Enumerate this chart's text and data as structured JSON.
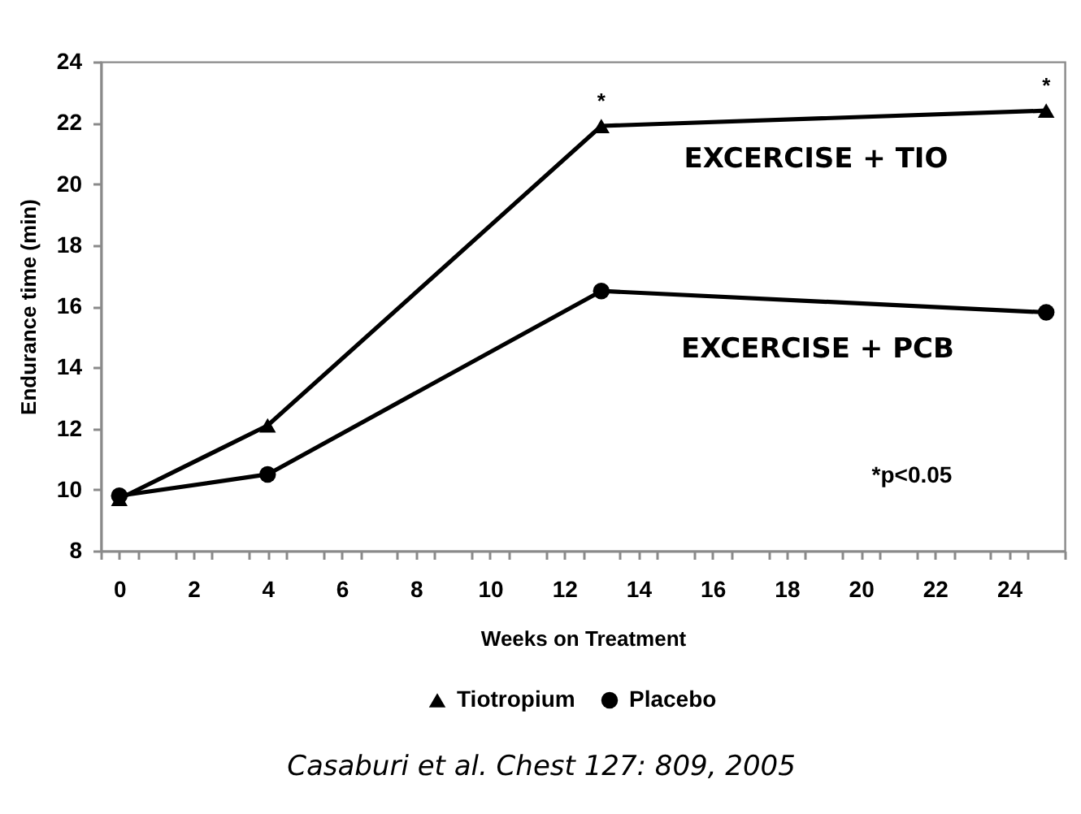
{
  "chart_data": {
    "type": "line",
    "xlabel": "Weeks on Treatment",
    "ylabel": "Endurance time (min)",
    "x": [
      0,
      4,
      13,
      25
    ],
    "series": [
      {
        "name": "Tiotropium",
        "color": "#000000",
        "marker": "triangle",
        "values": [
          9.7,
          12.1,
          21.9,
          22.4
        ]
      },
      {
        "name": "Placebo",
        "color": "#000000",
        "marker": "circle",
        "values": [
          9.8,
          10.5,
          16.5,
          15.8
        ]
      }
    ],
    "xlim": [
      -0.5,
      25.5
    ],
    "xticks": [
      {
        "value": -0.5,
        "label": null
      },
      0,
      {
        "value": 0.5,
        "label": null
      },
      {
        "value": 1.5,
        "label": null
      },
      2,
      {
        "value": 2.5,
        "label": null
      },
      {
        "value": 3.5,
        "label": null
      },
      4,
      {
        "value": 4.5,
        "label": null
      },
      {
        "value": 5.5,
        "label": null
      },
      6,
      {
        "value": 6.5,
        "label": null
      },
      {
        "value": 7.5,
        "label": null
      },
      8,
      {
        "value": 8.5,
        "label": null
      },
      {
        "value": 9.5,
        "label": null
      },
      10,
      {
        "value": 10.5,
        "label": null
      },
      {
        "value": 11.5,
        "label": null
      },
      12,
      {
        "value": 12.5,
        "label": null
      },
      {
        "value": 13.5,
        "label": null
      },
      14,
      {
        "value": 14.5,
        "label": null
      },
      {
        "value": 15.5,
        "label": null
      },
      16,
      {
        "value": 16.5,
        "label": null
      },
      {
        "value": 17.5,
        "label": null
      },
      18,
      {
        "value": 18.5,
        "label": null
      },
      {
        "value": 19.5,
        "label": null
      },
      20,
      {
        "value": 20.5,
        "label": null
      },
      {
        "value": 21.5,
        "label": null
      },
      22,
      {
        "value": 22.5,
        "label": null
      },
      {
        "value": 23.5,
        "label": null
      },
      24,
      {
        "value": 24.5,
        "label": null
      },
      {
        "value": 25.5,
        "label": null
      }
    ],
    "ylim": [
      8,
      24
    ],
    "yticks": [
      8,
      10,
      12,
      14,
      16,
      18,
      20,
      22,
      24
    ],
    "legend": "bottom",
    "annotations": [
      {
        "text": "*",
        "x": 13,
        "y": 21.9
      },
      {
        "text": "*",
        "x": 25,
        "y": 22.4
      },
      "EXCERCISE + TIO",
      "EXCERCISE + PCB",
      "*p<0.05",
      "Casaburi et al. Chest 127: 809, 2005"
    ]
  }
}
